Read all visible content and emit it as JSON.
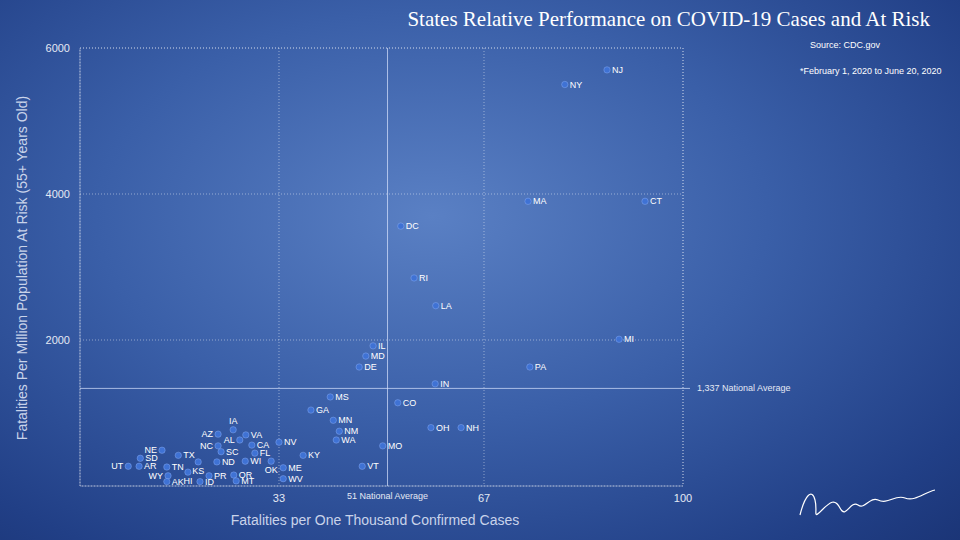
{
  "chart_data": {
    "type": "scatter",
    "title": "States Relative Performance on COVID-19 Cases and At Risk",
    "source": "Source: CDC.gov",
    "subtitle": "*February 1, 2020 to June 20, 2020",
    "x_label": "Fatalities per One Thousand Confirmed Cases",
    "y_label": "Fatalities Per Million Population At Risk (55+ Years Old)",
    "xlim": [
      0,
      100
    ],
    "ylim": [
      0,
      6000
    ],
    "xticks": [
      33,
      67,
      100
    ],
    "yticks": [
      2000,
      4000,
      6000
    ],
    "grid": true,
    "marker": "circle",
    "color": "#3f72d4",
    "reference_lines": [
      {
        "axis": "x",
        "value": 51,
        "label": "51 National Average"
      },
      {
        "axis": "y",
        "value": 1337,
        "label": "1,337 National Average"
      }
    ],
    "labels": [
      "NJ",
      "NY",
      "MA",
      "CT",
      "DC",
      "RI",
      "LA",
      "MI",
      "PA",
      "IL",
      "MD",
      "DE",
      "IN",
      "MS",
      "GA",
      "CO",
      "MN",
      "NM",
      "WA",
      "OH",
      "NH",
      "MO",
      "VT",
      "KY",
      "NV",
      "IA",
      "AZ",
      "VA",
      "AL",
      "NC",
      "CA",
      "SC",
      "FL",
      "KS",
      "ND",
      "WI",
      "OK",
      "ME",
      "NE",
      "TX",
      "SD",
      "AR",
      "UT",
      "TN",
      "HI",
      "WY",
      "AK",
      "PR",
      "OR",
      "MT",
      "ID",
      "WV"
    ],
    "x": [
      87.4,
      80.4,
      74.3,
      93.7,
      53.2,
      55.4,
      59.0,
      89.4,
      74.6,
      48.6,
      47.4,
      46.3,
      58.9,
      41.5,
      38.3,
      52.7,
      42.0,
      43.0,
      42.5,
      58.2,
      63.2,
      50.2,
      46.8,
      37.0,
      33.0,
      25.4,
      22.9,
      27.5,
      26.5,
      22.9,
      28.5,
      23.4,
      29.0,
      19.6,
      22.7,
      27.4,
      31.7,
      33.7,
      13.6,
      16.3,
      10.0,
      9.8,
      8.0,
      14.4,
      17.9,
      14.6,
      14.4,
      21.4,
      25.5,
      25.9,
      19.9,
      33.7
    ],
    "values": [
      5700,
      5500,
      3900,
      3900,
      3560,
      2850,
      2470,
      2010,
      1630,
      1920,
      1780,
      1630,
      1400,
      1220,
      1040,
      1140,
      900,
      750,
      630,
      800,
      800,
      550,
      270,
      420,
      600,
      770,
      710,
      700,
      630,
      550,
      560,
      470,
      450,
      330,
      330,
      340,
      340,
      250,
      490,
      420,
      380,
      270,
      270,
      260,
      190,
      140,
      60,
      140,
      150,
      70,
      60,
      100
    ]
  }
}
